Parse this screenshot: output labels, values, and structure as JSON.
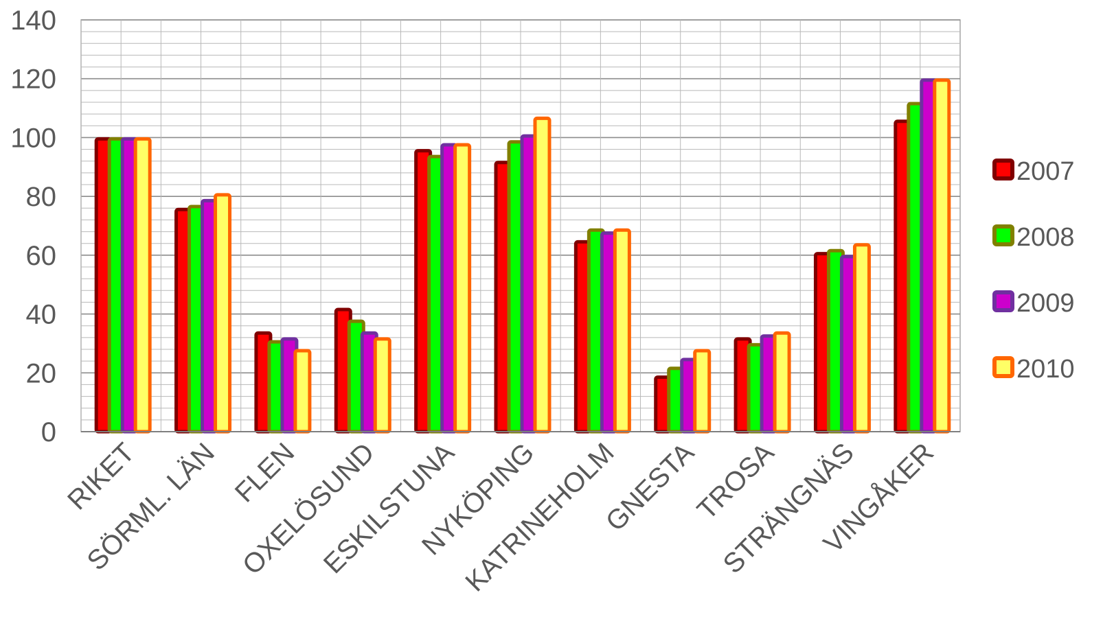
{
  "chart_data": {
    "type": "bar",
    "categories": [
      "RIKET",
      "SÖRML. LÄN",
      "FLEN",
      "OXELÖSUND",
      "ESKILSTUNA",
      "NYKÖPING",
      "KATRINEHOLM",
      "GNESTA",
      "TROSA",
      "STRÄNGNÄS",
      "VINGÅKER"
    ],
    "series": [
      {
        "name": "2007",
        "values": [
          100,
          76,
          34,
          42,
          96,
          92,
          65,
          19,
          32,
          61,
          106
        ],
        "edge_color": "#800000",
        "fill_color": "#ff0000"
      },
      {
        "name": "2008",
        "values": [
          100,
          77,
          31,
          38,
          94,
          99,
          69,
          22,
          30,
          62,
          112
        ],
        "edge_color": "#808000",
        "fill_color": "#00ff00"
      },
      {
        "name": "2009",
        "values": [
          100,
          79,
          32,
          34,
          98,
          101,
          68,
          25,
          33,
          60,
          120
        ],
        "edge_color": "#7030a0",
        "fill_color": "#cc00cc"
      },
      {
        "name": "2010",
        "values": [
          100,
          81,
          28,
          32,
          98,
          107,
          69,
          28,
          34,
          64,
          120
        ],
        "edge_color": "#ff6600",
        "fill_color": "#ffff66"
      }
    ],
    "ylim": [
      0,
      140
    ],
    "yticks": [
      "0",
      "20",
      "40",
      "60",
      "80",
      "100",
      "120",
      "140"
    ],
    "grid": true,
    "legend_position": "right",
    "title": "",
    "xlabel": "",
    "ylabel": ""
  }
}
